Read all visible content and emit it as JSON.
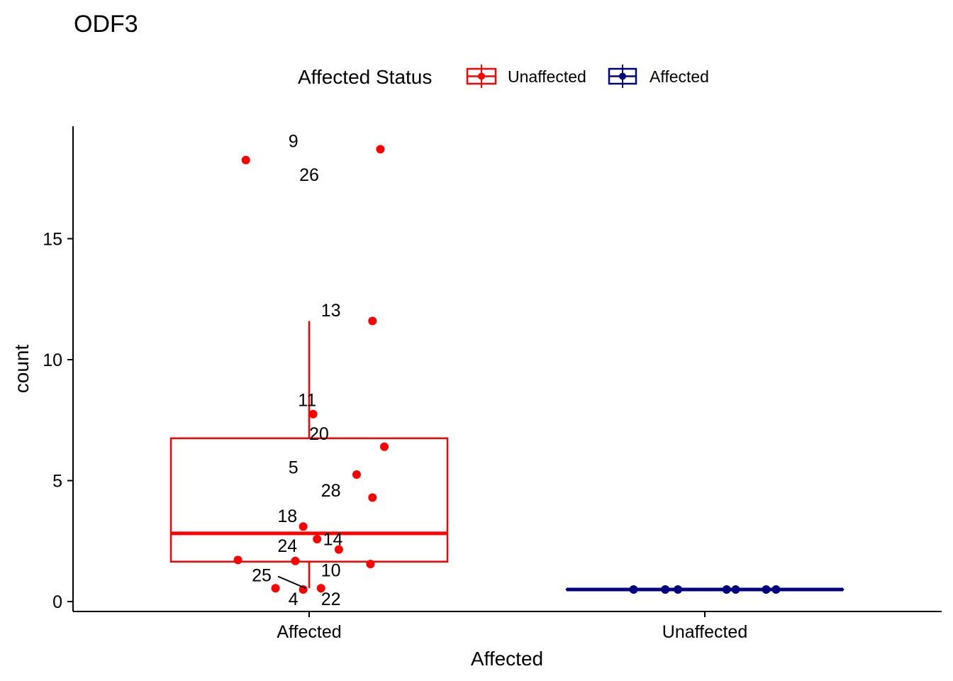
{
  "chart_data": {
    "type": "box",
    "title": "ODF3",
    "xlabel": "Affected",
    "ylabel": "count",
    "ylim": [
      -0.45,
      19.6
    ],
    "yticks": [
      0,
      5,
      10,
      15
    ],
    "categories": [
      "Affected",
      "Unaffected"
    ],
    "legend": {
      "title": "Affected Status",
      "position": "top",
      "entries": [
        {
          "label": "Unaffected",
          "color": "#ff0000"
        },
        {
          "label": "Affected",
          "color": "#000080"
        }
      ]
    },
    "grid": false,
    "series": [
      {
        "name": "Unaffected",
        "color": "#ff0000",
        "category": "Affected",
        "box": {
          "q1": 1.65,
          "median": 2.82,
          "q3": 6.75,
          "whisker_low": 0.55,
          "whisker_high": 11.6
        },
        "points": [
          {
            "x_offset": -0.16,
            "y": 18.25
          },
          {
            "x_offset": 0.18,
            "y": 18.7
          },
          {
            "x_offset": 0.16,
            "y": 11.6
          },
          {
            "x_offset": 0.01,
            "y": 7.75
          },
          {
            "x_offset": 0.19,
            "y": 6.4
          },
          {
            "x_offset": 0.12,
            "y": 5.25
          },
          {
            "x_offset": 0.16,
            "y": 4.3
          },
          {
            "x_offset": -0.015,
            "y": 3.1
          },
          {
            "x_offset": 0.02,
            "y": 2.58
          },
          {
            "x_offset": 0.075,
            "y": 2.15
          },
          {
            "x_offset": -0.18,
            "y": 1.72
          },
          {
            "x_offset": -0.035,
            "y": 1.68
          },
          {
            "x_offset": 0.155,
            "y": 1.55
          },
          {
            "x_offset": -0.085,
            "y": 0.55
          },
          {
            "x_offset": -0.015,
            "y": 0.5
          },
          {
            "x_offset": 0.03,
            "y": 0.55
          }
        ],
        "labels": [
          {
            "text": "9",
            "lx": -0.04,
            "ly": 19.05
          },
          {
            "text": "26",
            "lx": 0.0,
            "ly": 17.65
          },
          {
            "text": "13",
            "lx": 0.055,
            "ly": 12.05
          },
          {
            "text": "11",
            "lx": -0.005,
            "ly": 8.35
          },
          {
            "text": "20",
            "lx": 0.025,
            "ly": 6.95
          },
          {
            "text": "5",
            "lx": -0.04,
            "ly": 5.55
          },
          {
            "text": "28",
            "lx": 0.055,
            "ly": 4.6
          },
          {
            "text": "18",
            "lx": -0.055,
            "ly": 3.55
          },
          {
            "text": "14",
            "lx": 0.06,
            "ly": 2.6
          },
          {
            "text": "24",
            "lx": -0.055,
            "ly": 2.32
          },
          {
            "text": "10",
            "lx": 0.055,
            "ly": 1.3
          },
          {
            "text": "25",
            "lx": -0.12,
            "ly": 1.1
          },
          {
            "text": "4",
            "lx": -0.04,
            "ly": 0.12
          },
          {
            "text": "22",
            "lx": 0.055,
            "ly": 0.12
          }
        ]
      },
      {
        "name": "Affected",
        "color": "#000080",
        "category": "Unaffected",
        "box": {
          "q1": 0.5,
          "median": 0.5,
          "q3": 0.5,
          "whisker_low": 0.5,
          "whisker_high": 0.5
        },
        "points": [
          {
            "x_offset": -0.18,
            "y": 0.5
          },
          {
            "x_offset": -0.1,
            "y": 0.5
          },
          {
            "x_offset": -0.068,
            "y": 0.5
          },
          {
            "x_offset": 0.055,
            "y": 0.5
          },
          {
            "x_offset": 0.078,
            "y": 0.5
          },
          {
            "x_offset": 0.155,
            "y": 0.5
          },
          {
            "x_offset": 0.18,
            "y": 0.5
          }
        ]
      }
    ]
  }
}
